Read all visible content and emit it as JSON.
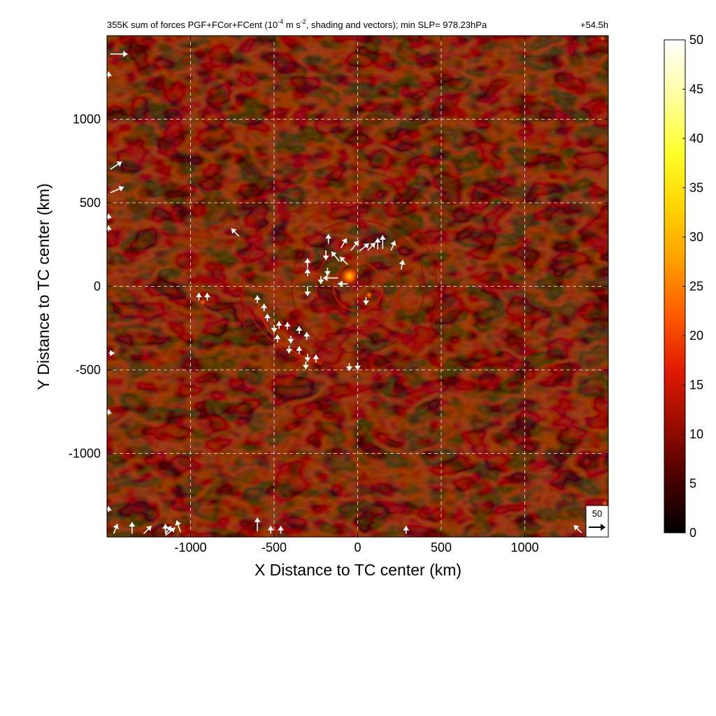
{
  "chart_data": {
    "type": "heatmap",
    "title": "355K sum of forces PGF+FCor+FCent (10",
    "title_exp": "-4",
    "title_unit_mid": " m s",
    "title_exp2": "-2",
    "title_tail": ", shading and vectors); min SLP= 978.23hPa",
    "time_label": "+54.5h",
    "xlabel": "X Distance to TC center (km)",
    "ylabel": "Y Distance to TC center (km)",
    "xlim": [
      -1500,
      1500
    ],
    "ylim": [
      -1500,
      1500
    ],
    "xticks": [
      -1000,
      -500,
      0,
      500,
      1000
    ],
    "yticks": [
      -1000,
      -500,
      0,
      500,
      1000
    ],
    "grid": true,
    "colorbar": {
      "min": 0,
      "max": 50,
      "ticks": [
        0,
        5,
        10,
        15,
        20,
        25,
        30,
        35,
        40,
        45,
        50
      ],
      "colors": [
        "#000000",
        "#4a0000",
        "#9a0d00",
        "#e01a00",
        "#ff5a00",
        "#ff9d00",
        "#ffd400",
        "#ffff2a",
        "#ffff9a",
        "#ffffff"
      ]
    },
    "reference_vector": {
      "value": "50"
    },
    "vectors": [
      {
        "x": -710,
        "y": 300,
        "u": -20,
        "v": 20
      },
      {
        "x": -175,
        "y": 255,
        "u": 0,
        "v": 25
      },
      {
        "x": -190,
        "y": 215,
        "u": 0,
        "v": -25
      },
      {
        "x": -100,
        "y": 230,
        "u": 15,
        "v": 25
      },
      {
        "x": -40,
        "y": 215,
        "u": 20,
        "v": 25
      },
      {
        "x": 10,
        "y": 210,
        "u": 25,
        "v": 20
      },
      {
        "x": 60,
        "y": 215,
        "u": 20,
        "v": 20
      },
      {
        "x": 120,
        "y": 220,
        "u": 0,
        "v": 30
      },
      {
        "x": 150,
        "y": 225,
        "u": 0,
        "v": 35
      },
      {
        "x": 200,
        "y": 215,
        "u": 10,
        "v": 25
      },
      {
        "x": 260,
        "y": 100,
        "u": 5,
        "v": 25
      },
      {
        "x": -110,
        "y": 150,
        "u": -20,
        "v": 25
      },
      {
        "x": -60,
        "y": 130,
        "u": -20,
        "v": 20
      },
      {
        "x": -180,
        "y": 110,
        "u": 0,
        "v": -20
      },
      {
        "x": -300,
        "y": 110,
        "u": 0,
        "v": 25
      },
      {
        "x": -300,
        "y": 60,
        "u": 0,
        "v": 20
      },
      {
        "x": -300,
        "y": 0,
        "u": 0,
        "v": -25
      },
      {
        "x": -220,
        "y": 60,
        "u": 0,
        "v": -20
      },
      {
        "x": -115,
        "y": 50,
        "u": -40,
        "v": 0
      },
      {
        "x": -60,
        "y": 15,
        "u": -25,
        "v": 0
      },
      {
        "x": 50,
        "y": -65,
        "u": 0,
        "v": -20
      },
      {
        "x": -950,
        "y": -85,
        "u": 0,
        "v": 20
      },
      {
        "x": -900,
        "y": -85,
        "u": 0,
        "v": 20
      },
      {
        "x": -600,
        "y": -100,
        "u": 0,
        "v": 20
      },
      {
        "x": -560,
        "y": -150,
        "u": 0,
        "v": 20
      },
      {
        "x": -540,
        "y": -210,
        "u": 0,
        "v": 20
      },
      {
        "x": -500,
        "y": -230,
        "u": 0,
        "v": -20
      },
      {
        "x": -470,
        "y": -255,
        "u": 0,
        "v": 20
      },
      {
        "x": -420,
        "y": -260,
        "u": 0,
        "v": 20
      },
      {
        "x": -400,
        "y": -295,
        "u": 0,
        "v": -20
      },
      {
        "x": -350,
        "y": -285,
        "u": 0,
        "v": 20
      },
      {
        "x": -305,
        "y": -320,
        "u": 0,
        "v": 20
      },
      {
        "x": -480,
        "y": -335,
        "u": 0,
        "v": 20
      },
      {
        "x": -410,
        "y": -355,
        "u": 0,
        "v": -20
      },
      {
        "x": -350,
        "y": -405,
        "u": 0,
        "v": 20
      },
      {
        "x": -300,
        "y": -405,
        "u": 0,
        "v": -20
      },
      {
        "x": -250,
        "y": -455,
        "u": 0,
        "v": 20
      },
      {
        "x": -310,
        "y": -450,
        "u": 0,
        "v": -20
      },
      {
        "x": -50,
        "y": -460,
        "u": 0,
        "v": -20
      },
      {
        "x": 0,
        "y": -455,
        "u": 0,
        "v": -20
      },
      {
        "x": -1480,
        "y": 1390,
        "u": 45,
        "v": 0
      },
      {
        "x": -1490,
        "y": 1250,
        "u": 0,
        "v": 15
      },
      {
        "x": -1480,
        "y": 700,
        "u": 30,
        "v": 20
      },
      {
        "x": -1480,
        "y": 560,
        "u": 35,
        "v": 15
      },
      {
        "x": -1490,
        "y": 400,
        "u": 0,
        "v": 15
      },
      {
        "x": -1490,
        "y": 330,
        "u": 0,
        "v": 15
      },
      {
        "x": -1490,
        "y": -400,
        "u": 15,
        "v": 0
      },
      {
        "x": -1490,
        "y": -770,
        "u": 0,
        "v": 15
      },
      {
        "x": -1490,
        "y": -1350,
        "u": 0,
        "v": 15
      },
      {
        "x": -1460,
        "y": -1480,
        "u": 10,
        "v": 25
      },
      {
        "x": -1350,
        "y": -1480,
        "u": 0,
        "v": 30
      },
      {
        "x": -1280,
        "y": -1480,
        "u": 20,
        "v": 20
      },
      {
        "x": -1150,
        "y": -1480,
        "u": 15,
        "v": 20
      },
      {
        "x": -1150,
        "y": -1470,
        "u": 0,
        "v": 20
      },
      {
        "x": -1150,
        "y": -1490,
        "u": 25,
        "v": 20
      },
      {
        "x": -1060,
        "y": -1470,
        "u": -10,
        "v": 30
      },
      {
        "x": -1150,
        "y": -1480,
        "u": 0,
        "v": 25
      },
      {
        "x": -600,
        "y": -1465,
        "u": 0,
        "v": 35
      },
      {
        "x": -520,
        "y": -1480,
        "u": 0,
        "v": 20
      },
      {
        "x": -460,
        "y": -1480,
        "u": 0,
        "v": 20
      },
      {
        "x": 290,
        "y": -1480,
        "u": 0,
        "v": 20
      },
      {
        "x": 1340,
        "y": -1475,
        "u": -20,
        "v": 20
      }
    ]
  }
}
